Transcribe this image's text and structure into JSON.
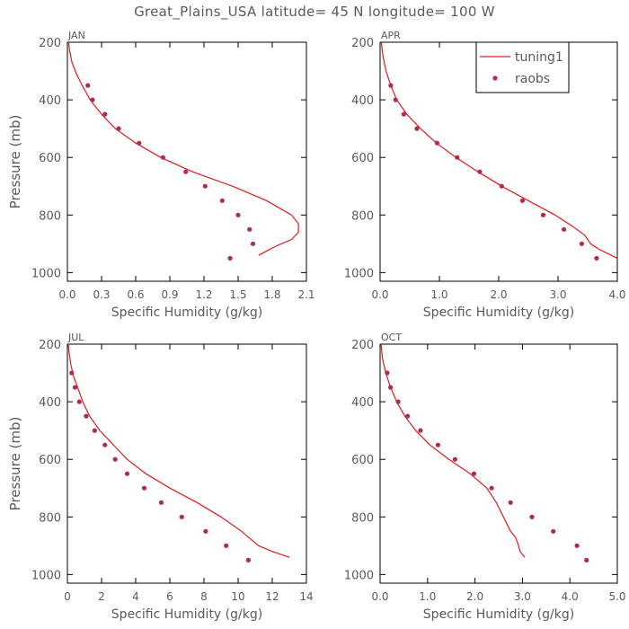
{
  "figure": {
    "title": "Great_Plains_USA   latitude= 45 N longitude= 100 W"
  },
  "colors": {
    "model": "#e31a1c",
    "obs": "#b5294f",
    "axis": "#000000",
    "text": "#5a5a5a"
  },
  "chart_data": [
    {
      "type": "line",
      "title": "JAN",
      "xlabel": "Specific Humidity (g/kg)",
      "ylabel": "Pressure (mb)",
      "xlim": [
        0,
        2.1
      ],
      "ylim": [
        1030,
        200
      ],
      "xticks": [
        "0.0",
        "0.3",
        "0.6",
        "0.9",
        "1.2",
        "1.5",
        "1.8",
        "2.1"
      ],
      "xtick_values": [
        0,
        0.3,
        0.6,
        0.9,
        1.2,
        1.5,
        1.8,
        2.1
      ],
      "yticks": [
        "200",
        "400",
        "600",
        "800",
        "1000"
      ],
      "ytick_values": [
        200,
        400,
        600,
        800,
        1000
      ],
      "legend": null,
      "series": [
        {
          "name": "tuning1",
          "kind": "line",
          "points": [
            [
              0.01,
              200
            ],
            [
              0.02,
              230
            ],
            [
              0.04,
              270
            ],
            [
              0.08,
              310
            ],
            [
              0.13,
              350
            ],
            [
              0.2,
              400
            ],
            [
              0.3,
              450
            ],
            [
              0.42,
              500
            ],
            [
              0.6,
              550
            ],
            [
              0.82,
              600
            ],
            [
              1.1,
              650
            ],
            [
              1.45,
              700
            ],
            [
              1.75,
              750
            ],
            [
              1.97,
              800
            ],
            [
              2.03,
              830
            ],
            [
              2.03,
              860
            ],
            [
              1.97,
              885
            ],
            [
              1.85,
              905
            ],
            [
              1.75,
              925
            ],
            [
              1.68,
              940
            ]
          ]
        },
        {
          "name": "raobs",
          "kind": "scatter",
          "points": [
            [
              0.18,
              350
            ],
            [
              0.22,
              400
            ],
            [
              0.33,
              450
            ],
            [
              0.45,
              500
            ],
            [
              0.63,
              550
            ],
            [
              0.84,
              600
            ],
            [
              1.04,
              650
            ],
            [
              1.21,
              700
            ],
            [
              1.36,
              750
            ],
            [
              1.5,
              800
            ],
            [
              1.6,
              850
            ],
            [
              1.63,
              900
            ],
            [
              1.43,
              950
            ]
          ]
        }
      ]
    },
    {
      "type": "line",
      "title": "APR",
      "xlabel": "Specific Humidity (g/kg)",
      "ylabel": "",
      "xlim": [
        0,
        4.0
      ],
      "ylim": [
        1030,
        200
      ],
      "xticks": [
        "0.0",
        "1.0",
        "2.0",
        "3.0",
        "4.0"
      ],
      "xtick_values": [
        0,
        1,
        2,
        3,
        4
      ],
      "yticks": [
        "200",
        "400",
        "600",
        "800",
        "1000"
      ],
      "ytick_values": [
        200,
        400,
        600,
        800,
        1000
      ],
      "legend": {
        "position": "top-right",
        "entries": [
          {
            "label": "tuning1",
            "kind": "line"
          },
          {
            "label": "raobs",
            "kind": "scatter"
          }
        ]
      },
      "series": [
        {
          "name": "tuning1",
          "kind": "line",
          "points": [
            [
              0.02,
              200
            ],
            [
              0.05,
              250
            ],
            [
              0.1,
              300
            ],
            [
              0.18,
              350
            ],
            [
              0.28,
              400
            ],
            [
              0.45,
              450
            ],
            [
              0.68,
              500
            ],
            [
              0.95,
              550
            ],
            [
              1.28,
              600
            ],
            [
              1.65,
              650
            ],
            [
              2.05,
              700
            ],
            [
              2.5,
              750
            ],
            [
              2.95,
              800
            ],
            [
              3.25,
              840
            ],
            [
              3.45,
              870
            ],
            [
              3.55,
              900
            ],
            [
              3.7,
              920
            ],
            [
              3.9,
              940
            ],
            [
              4.0,
              950
            ]
          ]
        },
        {
          "name": "raobs",
          "kind": "scatter",
          "points": [
            [
              0.18,
              350
            ],
            [
              0.26,
              400
            ],
            [
              0.4,
              450
            ],
            [
              0.62,
              500
            ],
            [
              0.96,
              550
            ],
            [
              1.3,
              600
            ],
            [
              1.68,
              650
            ],
            [
              2.05,
              700
            ],
            [
              2.4,
              750
            ],
            [
              2.75,
              800
            ],
            [
              3.1,
              850
            ],
            [
              3.4,
              900
            ],
            [
              3.65,
              950
            ]
          ]
        }
      ]
    },
    {
      "type": "line",
      "title": "JUL",
      "xlabel": "Specific Humidity (g/kg)",
      "ylabel": "Pressure (mb)",
      "xlim": [
        0,
        14
      ],
      "ylim": [
        1030,
        200
      ],
      "xticks": [
        "0",
        "2",
        "4",
        "6",
        "8",
        "10",
        "12",
        "14"
      ],
      "xtick_values": [
        0,
        2,
        4,
        6,
        8,
        10,
        12,
        14
      ],
      "yticks": [
        "200",
        "400",
        "600",
        "800",
        "1000"
      ],
      "ytick_values": [
        200,
        400,
        600,
        800,
        1000
      ],
      "legend": null,
      "series": [
        {
          "name": "tuning1",
          "kind": "line",
          "points": [
            [
              0.05,
              200
            ],
            [
              0.1,
              230
            ],
            [
              0.2,
              270
            ],
            [
              0.35,
              310
            ],
            [
              0.6,
              350
            ],
            [
              0.9,
              400
            ],
            [
              1.3,
              450
            ],
            [
              1.9,
              500
            ],
            [
              2.7,
              550
            ],
            [
              3.5,
              600
            ],
            [
              4.6,
              650
            ],
            [
              6.0,
              700
            ],
            [
              7.6,
              750
            ],
            [
              9.0,
              800
            ],
            [
              10.2,
              850
            ],
            [
              11.2,
              900
            ],
            [
              12.0,
              920
            ],
            [
              13.0,
              940
            ]
          ]
        },
        {
          "name": "raobs",
          "kind": "scatter",
          "points": [
            [
              0.25,
              300
            ],
            [
              0.45,
              350
            ],
            [
              0.7,
              400
            ],
            [
              1.1,
              450
            ],
            [
              1.6,
              500
            ],
            [
              2.2,
              550
            ],
            [
              2.8,
              600
            ],
            [
              3.5,
              650
            ],
            [
              4.5,
              700
            ],
            [
              5.5,
              750
            ],
            [
              6.7,
              800
            ],
            [
              8.1,
              850
            ],
            [
              9.3,
              900
            ],
            [
              10.6,
              950
            ]
          ]
        }
      ]
    },
    {
      "type": "line",
      "title": "OCT",
      "xlabel": "Specific Humidity (g/kg)",
      "ylabel": "",
      "xlim": [
        0,
        5.0
      ],
      "ylim": [
        1030,
        200
      ],
      "xticks": [
        "0.0",
        "1.0",
        "2.0",
        "3.0",
        "4.0",
        "5.0"
      ],
      "xtick_values": [
        0,
        1,
        2,
        3,
        4,
        5
      ],
      "yticks": [
        "200",
        "400",
        "600",
        "800",
        "1000"
      ],
      "ytick_values": [
        200,
        400,
        600,
        800,
        1000
      ],
      "legend": null,
      "series": [
        {
          "name": "tuning1",
          "kind": "line",
          "points": [
            [
              0.02,
              200
            ],
            [
              0.05,
              250
            ],
            [
              0.12,
              300
            ],
            [
              0.22,
              350
            ],
            [
              0.35,
              400
            ],
            [
              0.52,
              450
            ],
            [
              0.75,
              500
            ],
            [
              1.05,
              550
            ],
            [
              1.45,
              600
            ],
            [
              1.9,
              650
            ],
            [
              2.25,
              700
            ],
            [
              2.45,
              750
            ],
            [
              2.6,
              800
            ],
            [
              2.75,
              850
            ],
            [
              2.85,
              870
            ],
            [
              2.9,
              890
            ],
            [
              2.95,
              920
            ],
            [
              3.05,
              940
            ]
          ]
        },
        {
          "name": "raobs",
          "kind": "scatter",
          "points": [
            [
              0.15,
              300
            ],
            [
              0.22,
              350
            ],
            [
              0.38,
              400
            ],
            [
              0.58,
              450
            ],
            [
              0.85,
              500
            ],
            [
              1.22,
              550
            ],
            [
              1.58,
              600
            ],
            [
              1.98,
              650
            ],
            [
              2.35,
              700
            ],
            [
              2.75,
              750
            ],
            [
              3.2,
              800
            ],
            [
              3.65,
              850
            ],
            [
              4.15,
              900
            ],
            [
              4.35,
              950
            ]
          ]
        }
      ]
    }
  ]
}
